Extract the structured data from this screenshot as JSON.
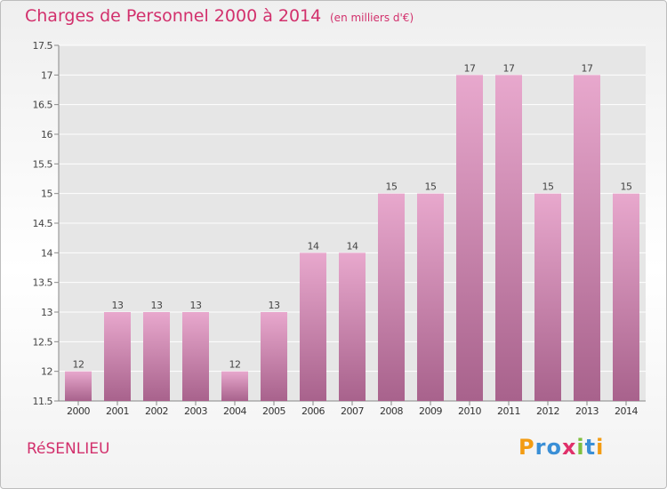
{
  "header": {
    "title": "Charges de Personnel 2000 à 2014",
    "subtitle": "(en milliers d'€)"
  },
  "footer": {
    "city": "RéSENLIEU",
    "logo_text": "Proxiti",
    "logo_letters": [
      {
        "ch": "P",
        "color": "#f39c12"
      },
      {
        "ch": "r",
        "color": "#3a8fd6"
      },
      {
        "ch": "o",
        "color": "#3a8fd6"
      },
      {
        "ch": "x",
        "color": "#e0306a"
      },
      {
        "ch": "i",
        "color": "#7fbf3f"
      },
      {
        "ch": "t",
        "color": "#3a8fd6"
      },
      {
        "ch": "i",
        "color": "#f39c12"
      }
    ]
  },
  "colors": {
    "bar_top": "#e8a8cd",
    "bar_bottom": "#a8628c",
    "accent": "#d2306c"
  },
  "chart_data": {
    "type": "bar",
    "categories": [
      "2000",
      "2001",
      "2002",
      "2003",
      "2004",
      "2005",
      "2006",
      "2007",
      "2008",
      "2009",
      "2010",
      "2011",
      "2012",
      "2013",
      "2014"
    ],
    "values": [
      12,
      13,
      13,
      13,
      12,
      13,
      14,
      14,
      15,
      15,
      17,
      17,
      15,
      17,
      15
    ],
    "title": "Charges de Personnel 2000 à 2014",
    "subtitle": "(en milliers d'€)",
    "ylim": [
      11.5,
      17.5
    ],
    "yticks": [
      "11.5",
      "12",
      "12.5",
      "13",
      "13.5",
      "14",
      "14.5",
      "15",
      "15.5",
      "16",
      "16.5",
      "17",
      "17.5"
    ],
    "grid": true
  }
}
